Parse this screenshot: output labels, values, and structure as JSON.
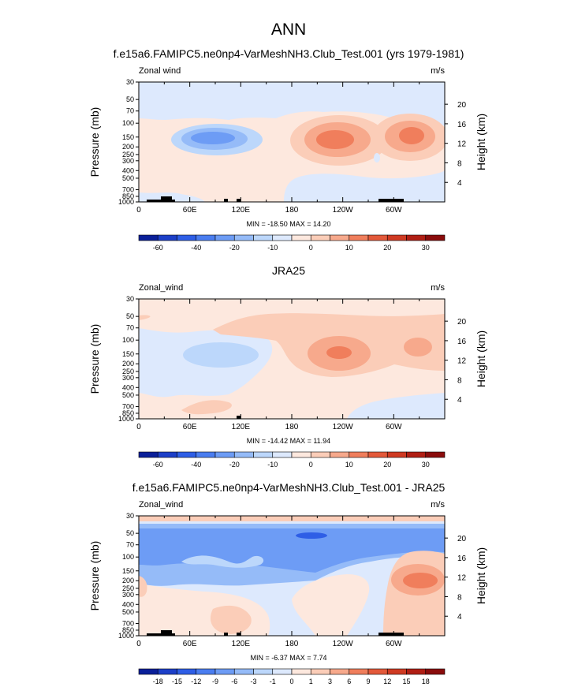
{
  "figure_title": "ANN",
  "chart_data": [
    {
      "type": "heatmap",
      "title": "f.e15a6.FAMIPC5.ne0np4-VarMeshNH3.Club_Test.001 (yrs 1979-1981)",
      "left_label": "Zonal wind",
      "units": "m/s",
      "ylabel": "Pressure (mb)",
      "y2label": "Height (km)",
      "xlabel": "",
      "x_ticks": [
        "0",
        "60E",
        "120E",
        "180",
        "120W",
        "60W"
      ],
      "y_ticks": [
        "30",
        "50",
        "70",
        "100",
        "150",
        "200",
        "250",
        "300",
        "400",
        "500",
        "700",
        "850",
        "1000"
      ],
      "y2_ticks": [
        "20",
        "16",
        "12",
        "8",
        "4"
      ],
      "stats": "MIN = -18.50  MAX =  14.20",
      "colorbar_ticks": [
        "-60",
        "-40",
        "-20",
        "-10",
        "0",
        "10",
        "20",
        "30"
      ],
      "colorbar_colors": [
        "#0a1f99",
        "#1c3fc8",
        "#2e5ee6",
        "#4a7df0",
        "#6d9cf5",
        "#95bbf8",
        "#bcd7fb",
        "#dde9fd",
        "#fde8de",
        "#fbcdb8",
        "#f7a98c",
        "#f07e5c",
        "#e3593a",
        "#cf3a22",
        "#b01e14",
        "#8a0c0c"
      ]
    },
    {
      "type": "heatmap",
      "title": "JRA25",
      "left_label": "Zonal_wind",
      "units": "m/s",
      "ylabel": "Pressure (mb)",
      "y2label": "Height (km)",
      "xlabel": "",
      "x_ticks": [
        "0",
        "60E",
        "120E",
        "180",
        "120W",
        "60W"
      ],
      "y_ticks": [
        "30",
        "50",
        "70",
        "100",
        "150",
        "200",
        "250",
        "300",
        "400",
        "500",
        "700",
        "850",
        "1000"
      ],
      "y2_ticks": [
        "20",
        "16",
        "12",
        "8",
        "4"
      ],
      "stats": "MIN = -14.42  MAX =  11.94",
      "colorbar_ticks": [
        "-60",
        "-40",
        "-20",
        "-10",
        "0",
        "10",
        "20",
        "30"
      ],
      "colorbar_colors": [
        "#0a1f99",
        "#1c3fc8",
        "#2e5ee6",
        "#4a7df0",
        "#6d9cf5",
        "#95bbf8",
        "#bcd7fb",
        "#dde9fd",
        "#fde8de",
        "#fbcdb8",
        "#f7a98c",
        "#f07e5c",
        "#e3593a",
        "#cf3a22",
        "#b01e14",
        "#8a0c0c"
      ]
    },
    {
      "type": "heatmap",
      "title": "f.e15a6.FAMIPC5.ne0np4-VarMeshNH3.Club_Test.001 - JRA25",
      "left_label": "Zonal_wind",
      "units": "m/s",
      "ylabel": "Pressure (mb)",
      "y2label": "Height (km)",
      "xlabel": "",
      "x_ticks": [
        "0",
        "60E",
        "120E",
        "180",
        "120W",
        "60W"
      ],
      "y_ticks": [
        "30",
        "50",
        "70",
        "100",
        "150",
        "200",
        "250",
        "300",
        "400",
        "500",
        "700",
        "850",
        "1000"
      ],
      "y2_ticks": [
        "20",
        "16",
        "12",
        "8",
        "4"
      ],
      "stats": "MIN =  -6.37  MAX =   7.74",
      "colorbar_ticks": [
        "-18",
        "-15",
        "-12",
        "-9",
        "-6",
        "-3",
        "-1",
        "0",
        "1",
        "3",
        "6",
        "9",
        "12",
        "15",
        "18"
      ],
      "colorbar_colors": [
        "#0a1f99",
        "#1c3fc8",
        "#2e5ee6",
        "#4a7df0",
        "#6d9cf5",
        "#95bbf8",
        "#bcd7fb",
        "#dde9fd",
        "#fde8de",
        "#fbcdb8",
        "#f7a98c",
        "#f07e5c",
        "#e3593a",
        "#cf3a22",
        "#b01e14",
        "#8a0c0c"
      ]
    }
  ]
}
